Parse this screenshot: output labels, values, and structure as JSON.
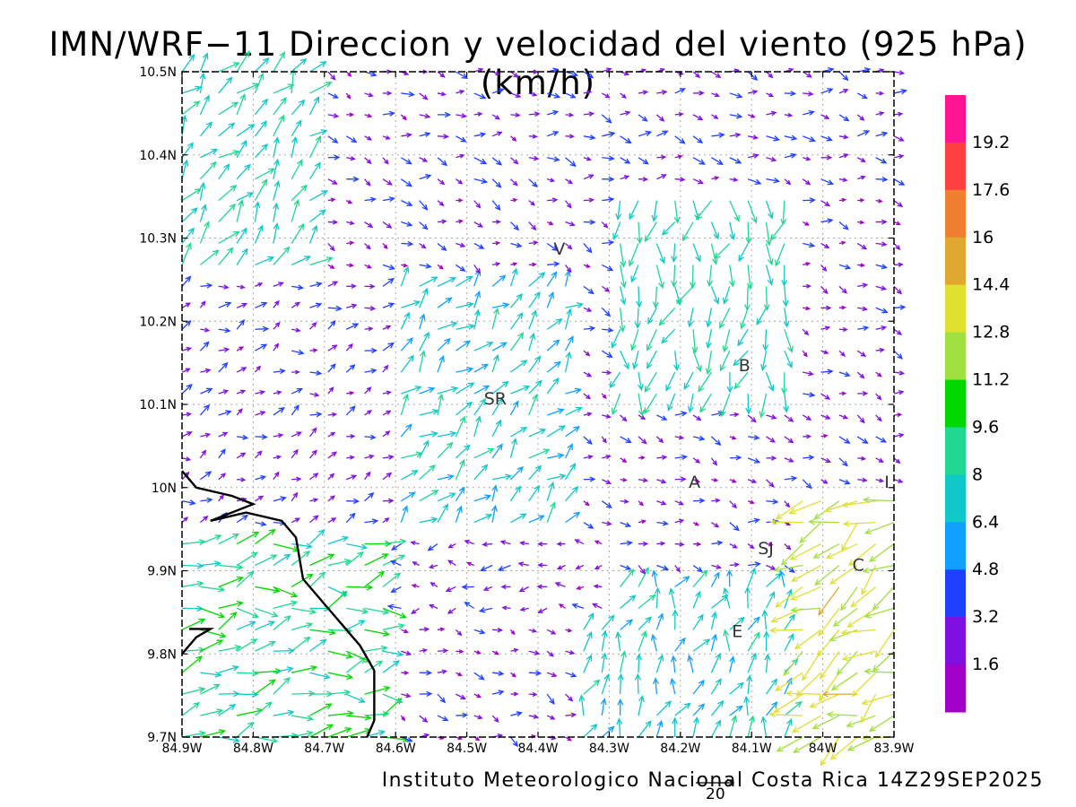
{
  "title": "IMN/WRF−11 Direccion y velocidad del viento (925 hPa)(km/h)",
  "credit": "Instituto Meteorologico Nacional Costa Rica 14Z29SEP2025",
  "reference_vector": {
    "value": "20"
  },
  "map": {
    "lon_range": [
      -84.9,
      -83.9
    ],
    "lat_range": [
      9.7,
      10.5
    ],
    "x_tick_labels": [
      "84.9W",
      "84.8W",
      "84.7W",
      "84.6W",
      "84.5W",
      "84.4W",
      "84.3W",
      "84.2W",
      "84.1W",
      "84W",
      "83.9W"
    ],
    "y_tick_labels": [
      "9.7N",
      "9.8N",
      "9.9N",
      "10N",
      "10.1N",
      "10.2N",
      "10.3N",
      "10.4N",
      "10.5N"
    ],
    "grid": true,
    "place_labels": [
      {
        "text": "V",
        "lon": -84.37,
        "lat": 10.28
      },
      {
        "text": "B",
        "lon": -84.11,
        "lat": 10.14
      },
      {
        "text": "SR",
        "lon": -84.46,
        "lat": 10.1
      },
      {
        "text": "A",
        "lon": -84.18,
        "lat": 10.0
      },
      {
        "text": "I",
        "lon": -83.91,
        "lat": 10.0
      },
      {
        "text": "SJ",
        "lon": -84.08,
        "lat": 9.92
      },
      {
        "text": "C",
        "lon": -83.95,
        "lat": 9.9
      },
      {
        "text": "E",
        "lon": -84.12,
        "lat": 9.82
      }
    ],
    "coastline": [
      [
        -84.9,
        10.02
      ],
      [
        -84.88,
        10.0
      ],
      [
        -84.83,
        9.99
      ],
      [
        -84.8,
        9.98
      ],
      [
        -84.86,
        9.96
      ],
      [
        -84.81,
        9.97
      ],
      [
        -84.76,
        9.96
      ],
      [
        -84.74,
        9.94
      ],
      [
        -84.73,
        9.89
      ],
      [
        -84.7,
        9.86
      ],
      [
        -84.67,
        9.83
      ],
      [
        -84.65,
        9.81
      ],
      [
        -84.63,
        9.78
      ],
      [
        -84.63,
        9.72
      ],
      [
        -84.64,
        9.7
      ]
    ],
    "coastline_south": [
      [
        -84.9,
        9.8
      ],
      [
        -84.88,
        9.82
      ],
      [
        -84.86,
        9.83
      ],
      [
        -84.89,
        9.83
      ]
    ],
    "wind_regions": [
      {
        "lon": [
          -84.9,
          -84.6
        ],
        "lat": [
          9.7,
          9.95
        ],
        "dir_deg": 80,
        "speed": 9
      },
      {
        "lon": [
          -84.9,
          -84.7
        ],
        "lat": [
          10.25,
          10.5
        ],
        "dir_deg": 40,
        "speed": 8
      },
      {
        "lon": [
          -84.6,
          -83.9
        ],
        "lat": [
          10.35,
          10.5
        ],
        "dir_deg": 100,
        "speed": 3
      },
      {
        "lon": [
          -84.3,
          -84.05
        ],
        "lat": [
          10.1,
          10.35
        ],
        "dir_deg": 190,
        "speed": 8
      },
      {
        "lon": [
          -84.05,
          -83.9
        ],
        "lat": [
          9.7,
          10.0
        ],
        "dir_deg": 240,
        "speed": 13
      },
      {
        "lon": [
          -84.35,
          -84.05
        ],
        "lat": [
          9.7,
          9.9
        ],
        "dir_deg": 20,
        "speed": 7
      },
      {
        "lon": [
          -84.6,
          -84.35
        ],
        "lat": [
          9.95,
          10.25
        ],
        "dir_deg": 45,
        "speed": 7
      },
      {
        "lon": [
          -84.9,
          -84.6
        ],
        "lat": [
          9.95,
          10.25
        ],
        "dir_deg": 70,
        "speed": 3
      },
      {
        "lon": [
          -84.6,
          -84.3
        ],
        "lat": [
          9.85,
          9.95
        ],
        "dir_deg": 270,
        "speed": 3
      }
    ]
  },
  "colorbar": {
    "labels": [
      "19.2",
      "17.6",
      "16",
      "14.4",
      "12.8",
      "11.2",
      "9.6",
      "8",
      "6.4",
      "4.8",
      "3.2",
      "1.6"
    ],
    "colors": [
      "#ff1493",
      "#ff4040",
      "#f08030",
      "#e0a830",
      "#e0e030",
      "#a0e040",
      "#00d800",
      "#20d890",
      "#10c8c8",
      "#10a0ff",
      "#2040ff",
      "#8010e0",
      "#a000c8"
    ]
  }
}
